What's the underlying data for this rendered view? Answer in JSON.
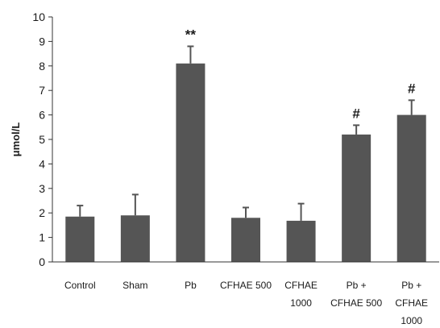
{
  "chart_data": {
    "type": "bar",
    "title": "",
    "xlabel": "",
    "ylabel": "μmol/L",
    "ylim": [
      0,
      10
    ],
    "yticks": [
      0,
      1,
      2,
      3,
      4,
      5,
      6,
      7,
      8,
      9,
      10
    ],
    "grid": false,
    "legend": "none",
    "bar_color": "#555555",
    "error_color": "#555555",
    "categories": [
      [
        "Control"
      ],
      [
        "Sham"
      ],
      [
        "Pb"
      ],
      [
        "CFHAE 500"
      ],
      [
        "CFHAE",
        "1000"
      ],
      [
        "Pb +",
        "CFHAE 500"
      ],
      [
        "Pb +",
        "CFHAE",
        "1000"
      ]
    ],
    "values": [
      1.85,
      1.9,
      8.1,
      1.8,
      1.68,
      5.2,
      6.0
    ],
    "errors": [
      0.45,
      0.85,
      0.7,
      0.42,
      0.7,
      0.38,
      0.6
    ],
    "annotations": [
      "",
      "",
      "**",
      "",
      "",
      "#",
      "#"
    ]
  }
}
